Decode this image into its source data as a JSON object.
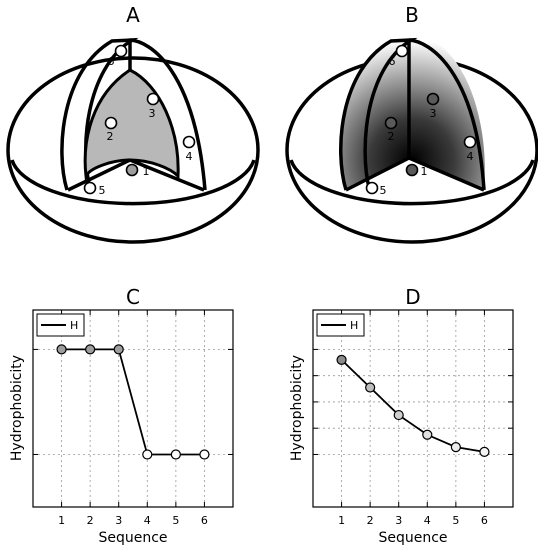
{
  "panels": {
    "a": {
      "letter": "A",
      "points": [
        {
          "label": "1",
          "fill": "#9e9e9e"
        },
        {
          "label": "2",
          "fill": "#ffffff"
        },
        {
          "label": "3",
          "fill": "#ffffff"
        },
        {
          "label": "4",
          "fill": "#ffffff"
        },
        {
          "label": "5",
          "fill": "#ffffff"
        },
        {
          "label": "6",
          "fill": "#ffffff"
        }
      ]
    },
    "b": {
      "letter": "B",
      "points": [
        {
          "label": "1",
          "fill": "#5a5a5a"
        },
        {
          "label": "2",
          "fill": "#5a5a5a"
        },
        {
          "label": "3",
          "fill": "#5a5a5a"
        },
        {
          "label": "4",
          "fill": "#ffffff"
        },
        {
          "label": "5",
          "fill": "#ffffff"
        },
        {
          "label": "6",
          "fill": "#ffffff"
        }
      ]
    }
  },
  "chart_data": [
    {
      "type": "line",
      "panel_letter": "C",
      "x": [
        1,
        2,
        3,
        4,
        5,
        6
      ],
      "series": [
        {
          "name": "H",
          "values": [
            4,
            4,
            4,
            0,
            0,
            0
          ]
        }
      ],
      "point_fills": [
        "#9e9e9e",
        "#9e9e9e",
        "#9e9e9e",
        "#ffffff",
        "#ffffff",
        "#ffffff"
      ],
      "xlabel": "Sequence",
      "ylabel": "Hydrophobicity",
      "xlim": [
        0,
        7
      ],
      "ylim": [
        -2,
        5.5
      ],
      "x_ticks": [
        1,
        2,
        3,
        4,
        5,
        6
      ],
      "y_gridlines": [
        0,
        4
      ],
      "grid": true,
      "legend": "top-left"
    },
    {
      "type": "line",
      "panel_letter": "D",
      "x": [
        1,
        2,
        3,
        4,
        5,
        6
      ],
      "series": [
        {
          "name": "H",
          "values": [
            3.6,
            2.55,
            1.5,
            0.75,
            0.28,
            0.1
          ]
        }
      ],
      "point_fills": [
        "#8c8c8c",
        "#bdbdbd",
        "#cfcfcf",
        "#e0e0e0",
        "#ececec",
        "#f5f5f5"
      ],
      "xlabel": "Sequence",
      "ylabel": "Hydrophobicity",
      "xlim": [
        0,
        7
      ],
      "ylim": [
        -2,
        5.5
      ],
      "x_ticks": [
        1,
        2,
        3,
        4,
        5,
        6
      ],
      "y_gridlines": [
        0,
        1,
        2,
        3,
        4
      ],
      "grid": true,
      "legend": "top-left"
    }
  ]
}
